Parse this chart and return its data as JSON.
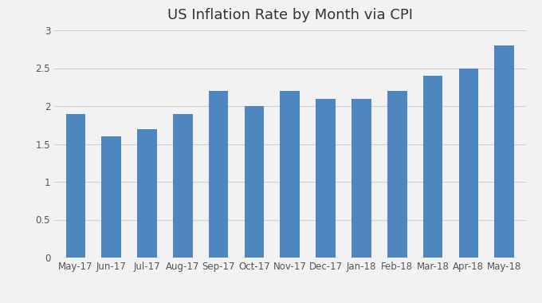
{
  "title": "US Inflation Rate by Month via CPI",
  "categories": [
    "May-17",
    "Jun-17",
    "Jul-17",
    "Aug-17",
    "Sep-17",
    "Oct-17",
    "Nov-17",
    "Dec-17",
    "Jan-18",
    "Feb-18",
    "Mar-18",
    "Apr-18",
    "May-18"
  ],
  "values": [
    1.9,
    1.6,
    1.7,
    1.9,
    2.2,
    2.0,
    2.2,
    2.1,
    2.1,
    2.2,
    2.4,
    2.5,
    2.8
  ],
  "bar_color": "#4e86c0",
  "ylim": [
    0,
    3.0
  ],
  "yticks": [
    0,
    0.5,
    1.0,
    1.5,
    2.0,
    2.5,
    3.0
  ],
  "background_color": "#f2f2f2",
  "grid_color": "#d0d0d0",
  "title_fontsize": 13,
  "tick_fontsize": 8.5,
  "bar_width": 0.55
}
